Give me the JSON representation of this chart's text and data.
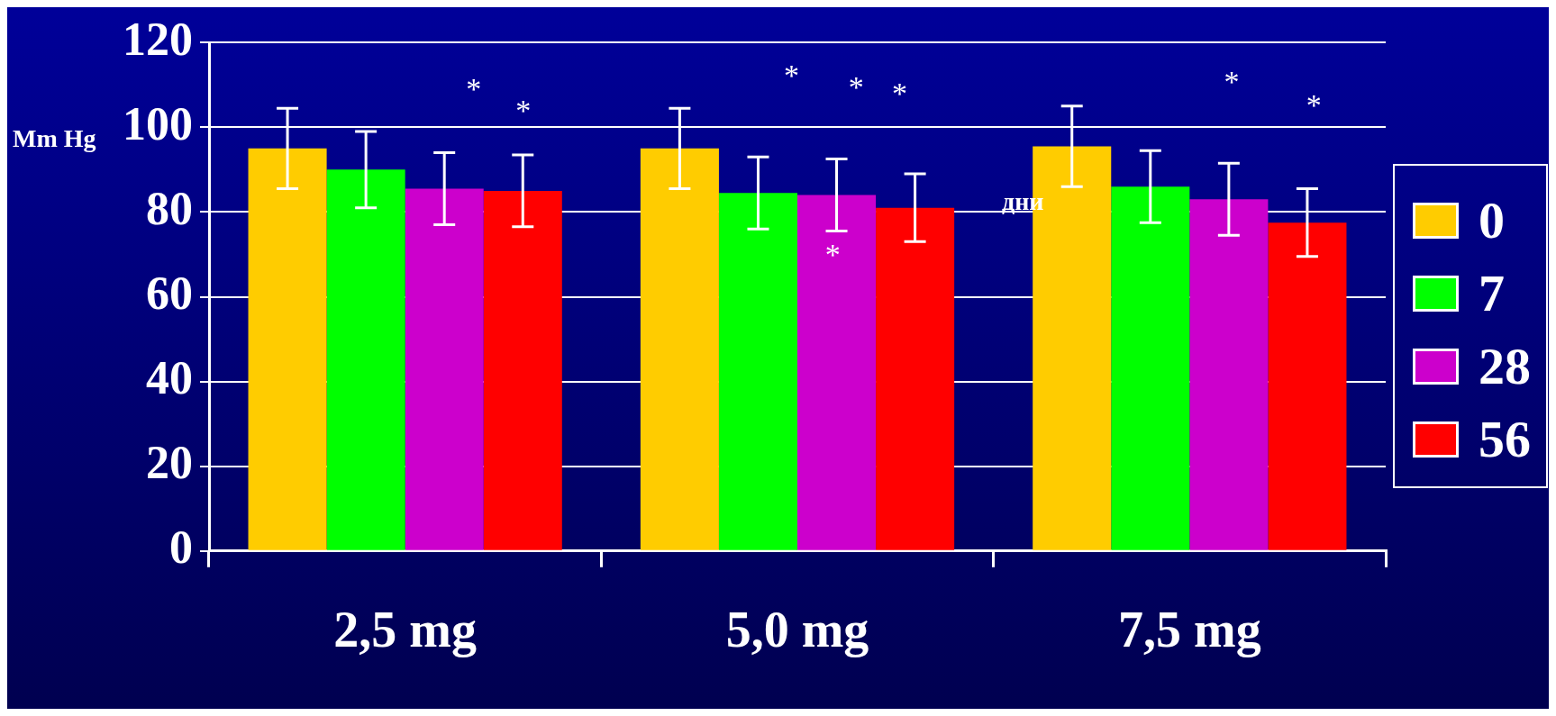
{
  "chart_data": {
    "type": "bar",
    "ylabel": "Mm Hg",
    "legend_title": "дни",
    "categories": [
      "2,5 mg",
      "5,0 mg",
      "7,5 mg"
    ],
    "series": [
      {
        "name": "0",
        "color": "#ffcc00",
        "values": [
          95,
          95,
          95.5
        ],
        "errors": [
          9.5,
          9.5,
          9.5
        ]
      },
      {
        "name": "7",
        "color": "#00ff00",
        "values": [
          90,
          84.5,
          86
        ],
        "errors": [
          9,
          8.5,
          8.5
        ]
      },
      {
        "name": "28",
        "color": "#cc00cc",
        "values": [
          85.5,
          84,
          83
        ],
        "errors": [
          8.5,
          8.5,
          8.5
        ]
      },
      {
        "name": "56",
        "color": "#ff0000",
        "values": [
          85,
          81,
          77.5
        ],
        "errors": [
          8.5,
          8,
          8
        ]
      }
    ],
    "ylim": [
      0,
      120
    ],
    "yticks": [
      0,
      20,
      40,
      60,
      80,
      100,
      120
    ],
    "grid": "y",
    "legend": "right",
    "annotations": [
      "*",
      "*",
      "*",
      "*",
      "*",
      "*",
      "*",
      "*"
    ]
  }
}
